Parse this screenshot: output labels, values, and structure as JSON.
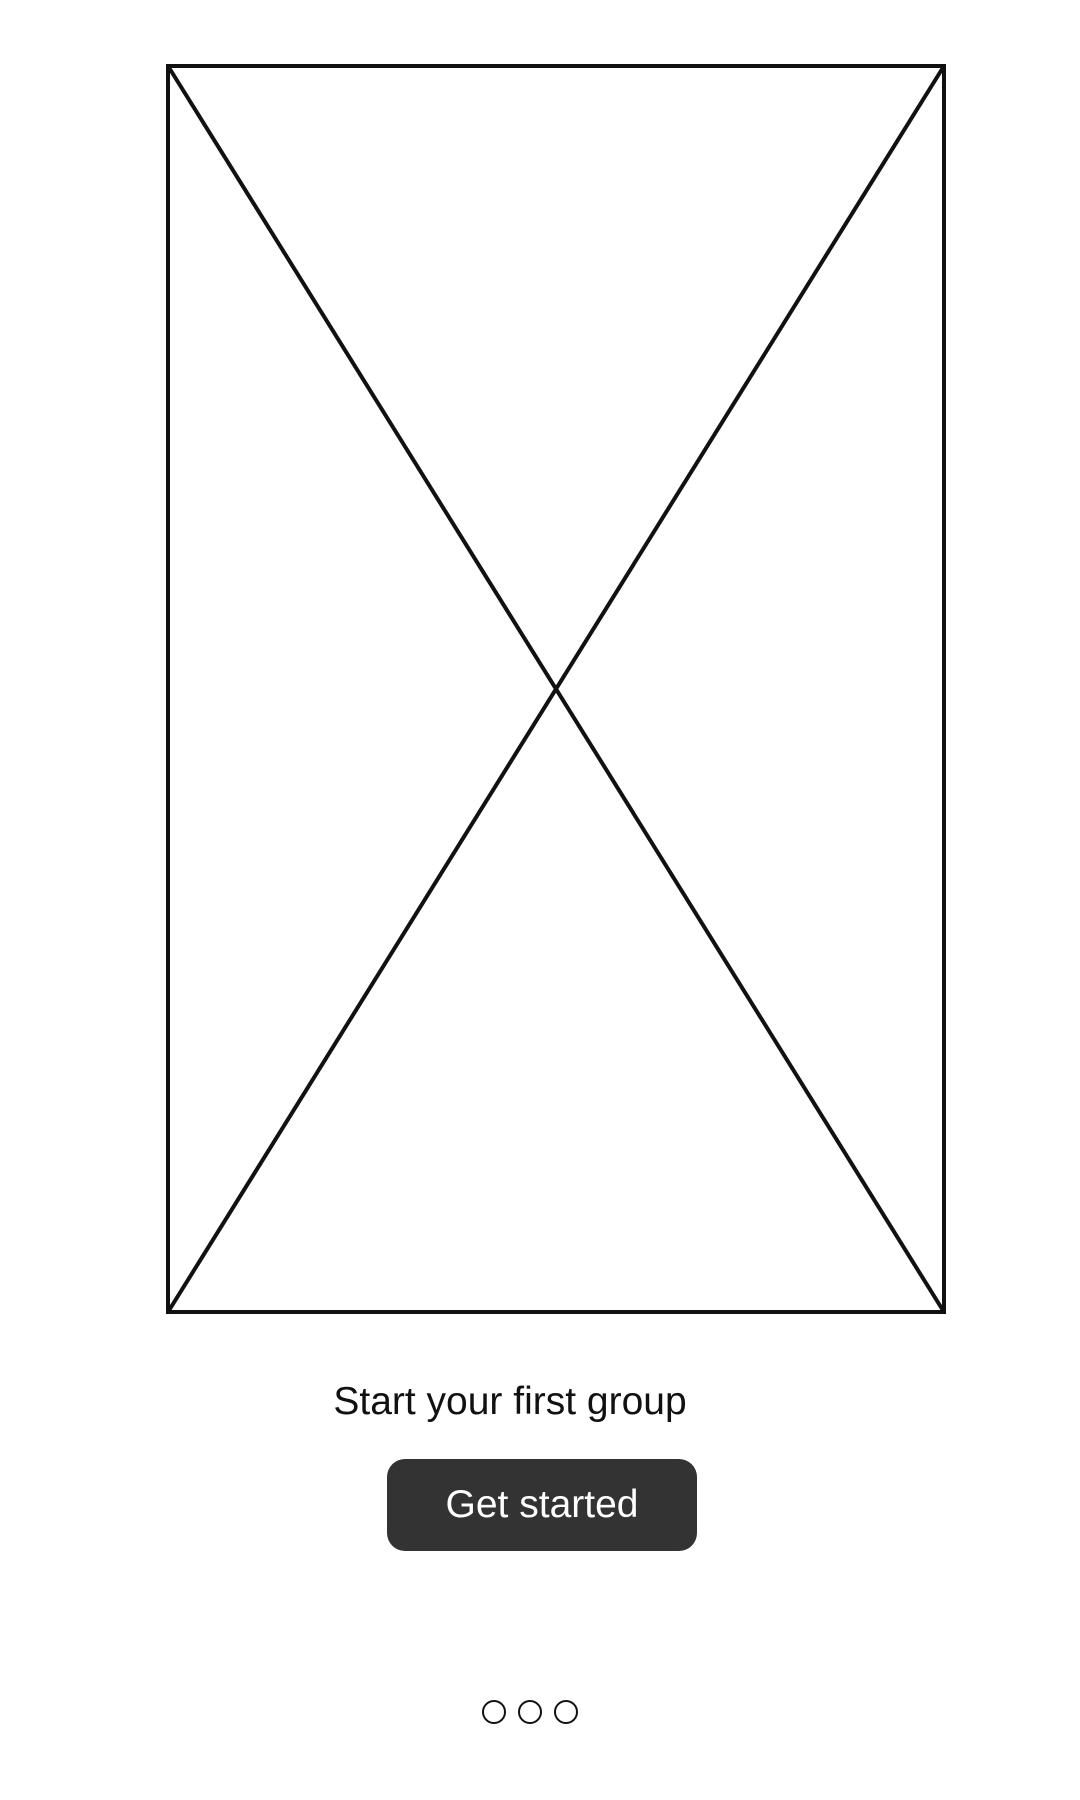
{
  "onboarding": {
    "headline": "Start your first group",
    "cta_label": "Get started",
    "pager": {
      "total_pages": 3,
      "dots": [
        "page-dot-1",
        "page-dot-2",
        "page-dot-3"
      ]
    }
  },
  "icons": {
    "placeholder": "image-placeholder-icon"
  },
  "colors": {
    "background": "#ffffff",
    "stroke": "#111111",
    "button_bg": "#333333",
    "button_text": "#ffffff"
  }
}
